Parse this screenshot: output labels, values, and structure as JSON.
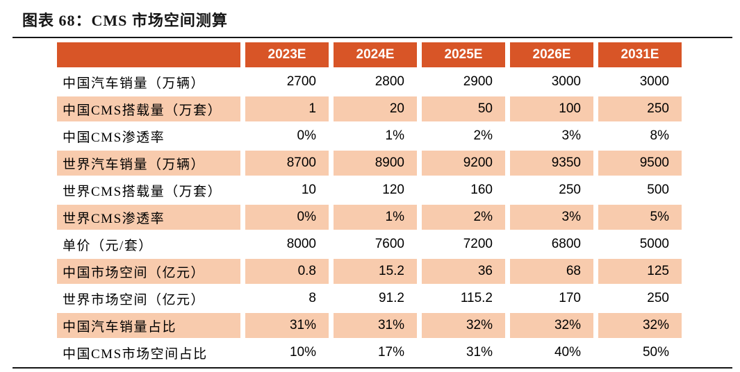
{
  "figure_title": "图表 68：CMS 市场空间测算",
  "colors": {
    "header_bg": "#D85527",
    "shaded_row_bg": "#F8CBAD",
    "header_text": "#FFFFFF",
    "title_text": "#151515",
    "rule": "#151515"
  },
  "chart_data": {
    "type": "table",
    "title": "图表 68：CMS 市场空间测算",
    "columns": [
      "2023E",
      "2024E",
      "2025E",
      "2026E",
      "2031E"
    ],
    "rows": [
      {
        "label": "中国汽车销量（万辆）",
        "values": [
          "2700",
          "2800",
          "2900",
          "3000",
          "3000"
        ],
        "shaded": false
      },
      {
        "label": "中国CMS搭载量（万套）",
        "values": [
          "1",
          "20",
          "50",
          "100",
          "250"
        ],
        "shaded": true
      },
      {
        "label": "中国CMS渗透率",
        "values": [
          "0%",
          "1%",
          "2%",
          "3%",
          "8%"
        ],
        "shaded": false
      },
      {
        "label": "世界汽车销量（万辆）",
        "values": [
          "8700",
          "8900",
          "9200",
          "9350",
          "9500"
        ],
        "shaded": true
      },
      {
        "label": "世界CMS搭载量（万套）",
        "values": [
          "10",
          "120",
          "160",
          "250",
          "500"
        ],
        "shaded": false
      },
      {
        "label": "世界CMS渗透率",
        "values": [
          "0%",
          "1%",
          "2%",
          "3%",
          "5%"
        ],
        "shaded": true
      },
      {
        "label": "单价（元/套）",
        "values": [
          "8000",
          "7600",
          "7200",
          "6800",
          "5000"
        ],
        "shaded": false
      },
      {
        "label": "中国市场空间（亿元）",
        "values": [
          "0.8",
          "15.2",
          "36",
          "68",
          "125"
        ],
        "shaded": true
      },
      {
        "label": "世界市场空间（亿元）",
        "values": [
          "8",
          "91.2",
          "115.2",
          "170",
          "250"
        ],
        "shaded": false
      },
      {
        "label": "中国汽车销量占比",
        "values": [
          "31%",
          "31%",
          "32%",
          "32%",
          "32%"
        ],
        "shaded": true
      },
      {
        "label": "中国CMS市场空间占比",
        "values": [
          "10%",
          "17%",
          "31%",
          "40%",
          "50%"
        ],
        "shaded": false
      }
    ]
  }
}
